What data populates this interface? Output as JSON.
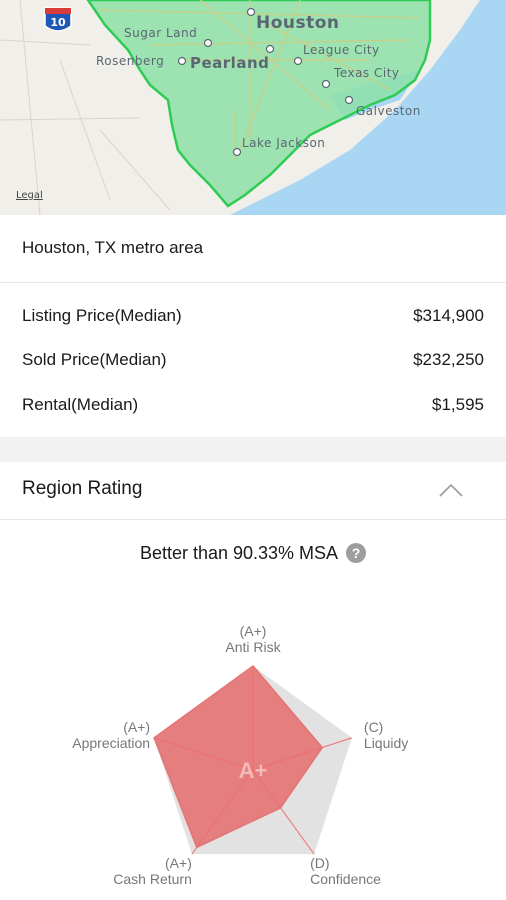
{
  "map": {
    "legal_label": "Legal",
    "highway_shield": "10",
    "labels": {
      "houston": "Houston",
      "sugar_land": "Sugar Land",
      "rosenberg": "Rosenberg",
      "pearland": "Pearland",
      "league_city": "League City",
      "texas_city": "Texas City",
      "galveston": "Galveston",
      "lake_jackson": "Lake Jackson"
    },
    "colors": {
      "region_fill": "#8ee0a8",
      "region_stroke": "#2ecc54",
      "water": "#a9d6f2",
      "land": "#f1efe9"
    }
  },
  "area": {
    "title": "Houston, TX metro area"
  },
  "stats": [
    {
      "label": "Listing Price(Median)",
      "value": "$314,900"
    },
    {
      "label": "Sold Price(Median)",
      "value": "$232,250"
    },
    {
      "label": "Rental(Median)",
      "value": "$1,595"
    }
  ],
  "rating": {
    "section_title": "Region Rating",
    "summary_text": "Better than 90.33% MSA",
    "help_icon": "?",
    "overall_grade": "A+",
    "accent_color": "#e57373",
    "axes": [
      {
        "name": "Anti Risk",
        "grade": "(A+)",
        "level": 1.0
      },
      {
        "name": "Liquidy",
        "grade": "(C)",
        "level": 0.7
      },
      {
        "name": "Confidence",
        "grade": "(D)",
        "level": 0.45
      },
      {
        "name": "Cash Return",
        "grade": "(A+)",
        "level": 0.92
      },
      {
        "name": "Appreciation",
        "grade": "(A+)",
        "level": 1.0
      }
    ]
  }
}
